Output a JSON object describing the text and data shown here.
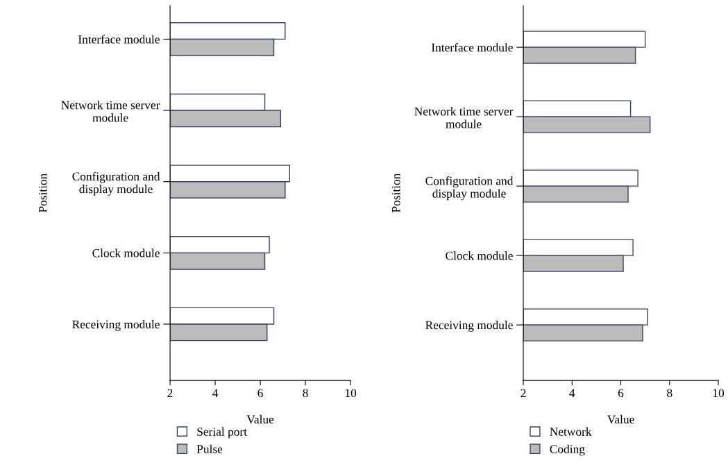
{
  "chart_data": [
    {
      "type": "bar",
      "orientation": "horizontal",
      "xlabel": "Value",
      "ylabel": "Position",
      "categories": [
        "Interface module",
        "Network time server\nmodule",
        "Configuration and\ndisplay module",
        "Clock module",
        "Receiving module"
      ],
      "xlim": [
        2,
        10
      ],
      "xticks": [
        2,
        4,
        6,
        8,
        10
      ],
      "legend": "bottom",
      "grid": false,
      "series": [
        {
          "name": "Serial port",
          "color": "#ffffff",
          "values": [
            7.1,
            6.2,
            7.3,
            6.4,
            6.6
          ]
        },
        {
          "name": "Pulse",
          "color": "#bbbbbb",
          "values": [
            6.6,
            6.9,
            7.1,
            6.2,
            6.3
          ]
        }
      ]
    },
    {
      "type": "bar",
      "orientation": "horizontal",
      "xlabel": "Value",
      "ylabel": "Position",
      "categories": [
        "Interface module",
        "Network time server\nmodule",
        "Configuration and\ndisplay module",
        "Clock module",
        "Receiving module"
      ],
      "xlim": [
        2,
        10
      ],
      "xticks": [
        2,
        4,
        6,
        8,
        10
      ],
      "legend": "bottom",
      "grid": false,
      "series": [
        {
          "name": "Network",
          "color": "#ffffff",
          "values": [
            7.0,
            6.4,
            6.7,
            6.5,
            7.1
          ]
        },
        {
          "name": "Coding",
          "color": "#bbbbbb",
          "values": [
            6.6,
            7.2,
            6.3,
            6.1,
            6.9
          ]
        }
      ]
    }
  ]
}
